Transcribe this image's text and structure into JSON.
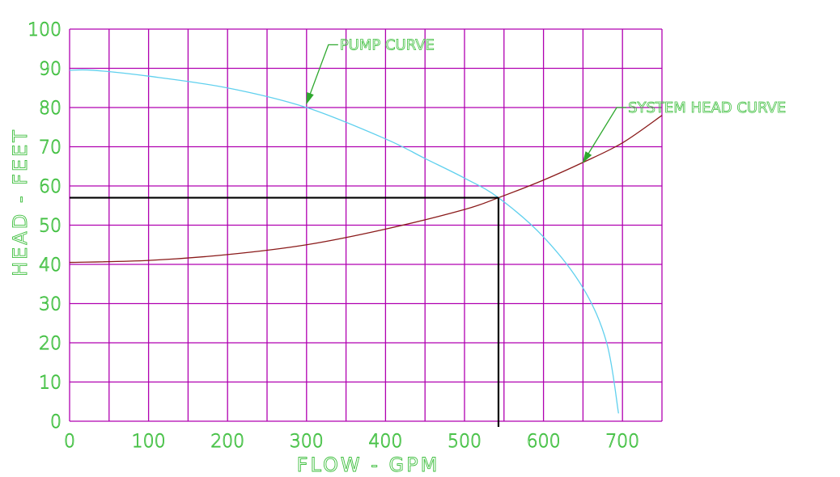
{
  "chart_data": {
    "type": "line",
    "xlabel": "FLOW - GPM",
    "ylabel": "HEAD - FEET",
    "xlim": [
      0,
      750
    ],
    "ylim": [
      0,
      100
    ],
    "x_ticks": [
      "0",
      "100",
      "200",
      "300",
      "400",
      "500",
      "600",
      "700"
    ],
    "y_ticks": [
      "0",
      "10",
      "20",
      "30",
      "40",
      "50",
      "60",
      "70",
      "80",
      "90",
      "100"
    ],
    "grid": true,
    "series": [
      {
        "name": "PUMP CURVE",
        "color": "#5fd0ee",
        "x": [
          0,
          30,
          100,
          200,
          300,
          400,
          450,
          500,
          543,
          600,
          650,
          680,
          695
        ],
        "y": [
          89.5,
          89.5,
          88,
          85,
          80,
          72,
          67,
          62,
          57,
          47,
          34,
          20,
          2
        ]
      },
      {
        "name": "SYSTEM HEAD CURVE",
        "color": "#8a1a1a",
        "x": [
          0,
          100,
          200,
          300,
          400,
          500,
          543,
          600,
          650,
          700,
          750
        ],
        "y": [
          40.5,
          41,
          42.5,
          45,
          49,
          54,
          57,
          61.5,
          66,
          71,
          78
        ]
      }
    ],
    "operating_point": {
      "x": 543,
      "y": 57
    },
    "annotations": [
      {
        "text": "PUMP CURVE",
        "target_x": 300,
        "target_y": 81,
        "label_x": 340,
        "label_y": 96
      },
      {
        "text": "SYSTEM HEAD CURVE",
        "target_x": 650,
        "target_y": 66,
        "label_x": 705,
        "label_y": 80
      }
    ]
  },
  "colors": {
    "grid": "#b000b0",
    "labels": "#3fbf3f",
    "pump_curve": "#5fd0ee",
    "system_curve": "#8a1a1a",
    "operating_lines": "#000000",
    "arrows": "#2ea82e"
  }
}
